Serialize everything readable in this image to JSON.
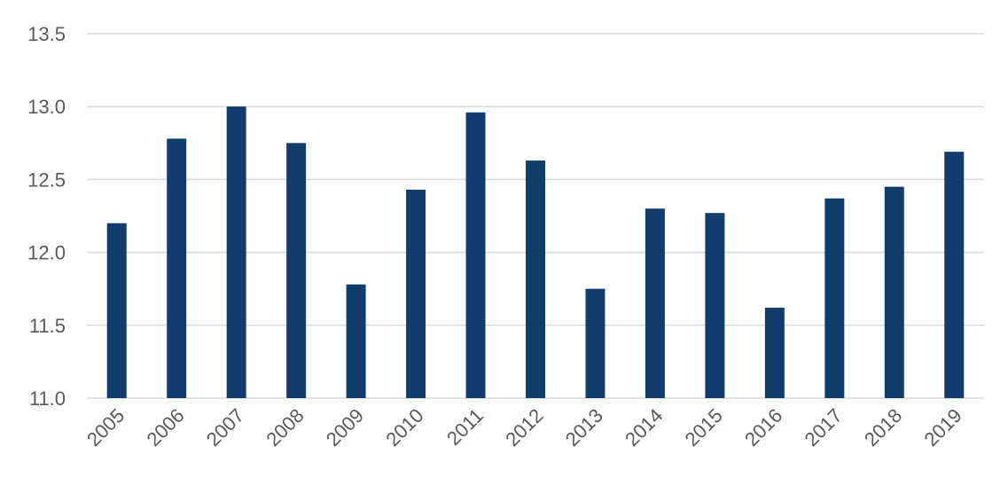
{
  "chart_data": {
    "type": "bar",
    "title": "",
    "xlabel": "",
    "ylabel": "",
    "categories": [
      "2005",
      "2006",
      "2007",
      "2008",
      "2009",
      "2010",
      "2011",
      "2012",
      "2013",
      "2014",
      "2015",
      "2016",
      "2017",
      "2018",
      "2019"
    ],
    "values": [
      12.2,
      12.78,
      13.0,
      12.75,
      11.78,
      12.43,
      12.96,
      12.63,
      11.75,
      12.3,
      12.27,
      11.62,
      12.37,
      12.45,
      12.69
    ],
    "ylim": [
      11.0,
      13.5
    ],
    "yticks": [
      "11.0",
      "11.5",
      "12.0",
      "12.5",
      "13.0",
      "13.5"
    ],
    "grid": true,
    "legend": "none",
    "bar_color": "#103d6b"
  }
}
